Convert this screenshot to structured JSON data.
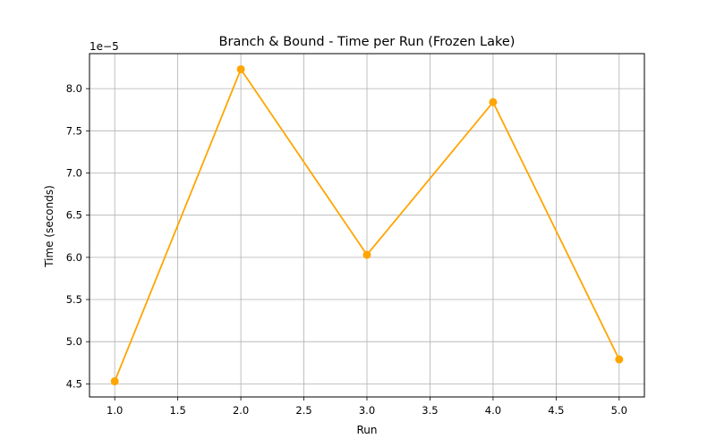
{
  "chart_data": {
    "type": "line",
    "title": "Branch & Bound - Time per Run (Frozen Lake)",
    "xlabel": "Run",
    "ylabel": "Time (seconds)",
    "offset_label": "1e−5",
    "x": [
      1,
      2,
      3,
      4,
      5
    ],
    "series": [
      {
        "values": [
          4.53e-05,
          8.23e-05,
          6.03e-05,
          7.84e-05,
          4.79e-05
        ],
        "color": "#ffa500",
        "marker": "circle"
      }
    ],
    "xlim": [
      0.8,
      5.2
    ],
    "ylim": [
      4.345e-05,
      8.415e-05
    ],
    "xticks": [
      1.0,
      1.5,
      2.0,
      2.5,
      3.0,
      3.5,
      4.0,
      4.5,
      5.0
    ],
    "xtick_labels": [
      "1.0",
      "1.5",
      "2.0",
      "2.5",
      "3.0",
      "3.5",
      "4.0",
      "4.5",
      "5.0"
    ],
    "yticks": [
      4.5e-05,
      5e-05,
      5.5e-05,
      6e-05,
      6.5e-05,
      7e-05,
      7.5e-05,
      8e-05
    ],
    "ytick_labels": [
      "4.5",
      "5.0",
      "5.5",
      "6.0",
      "6.5",
      "7.0",
      "7.5",
      "8.0"
    ],
    "grid": true
  }
}
